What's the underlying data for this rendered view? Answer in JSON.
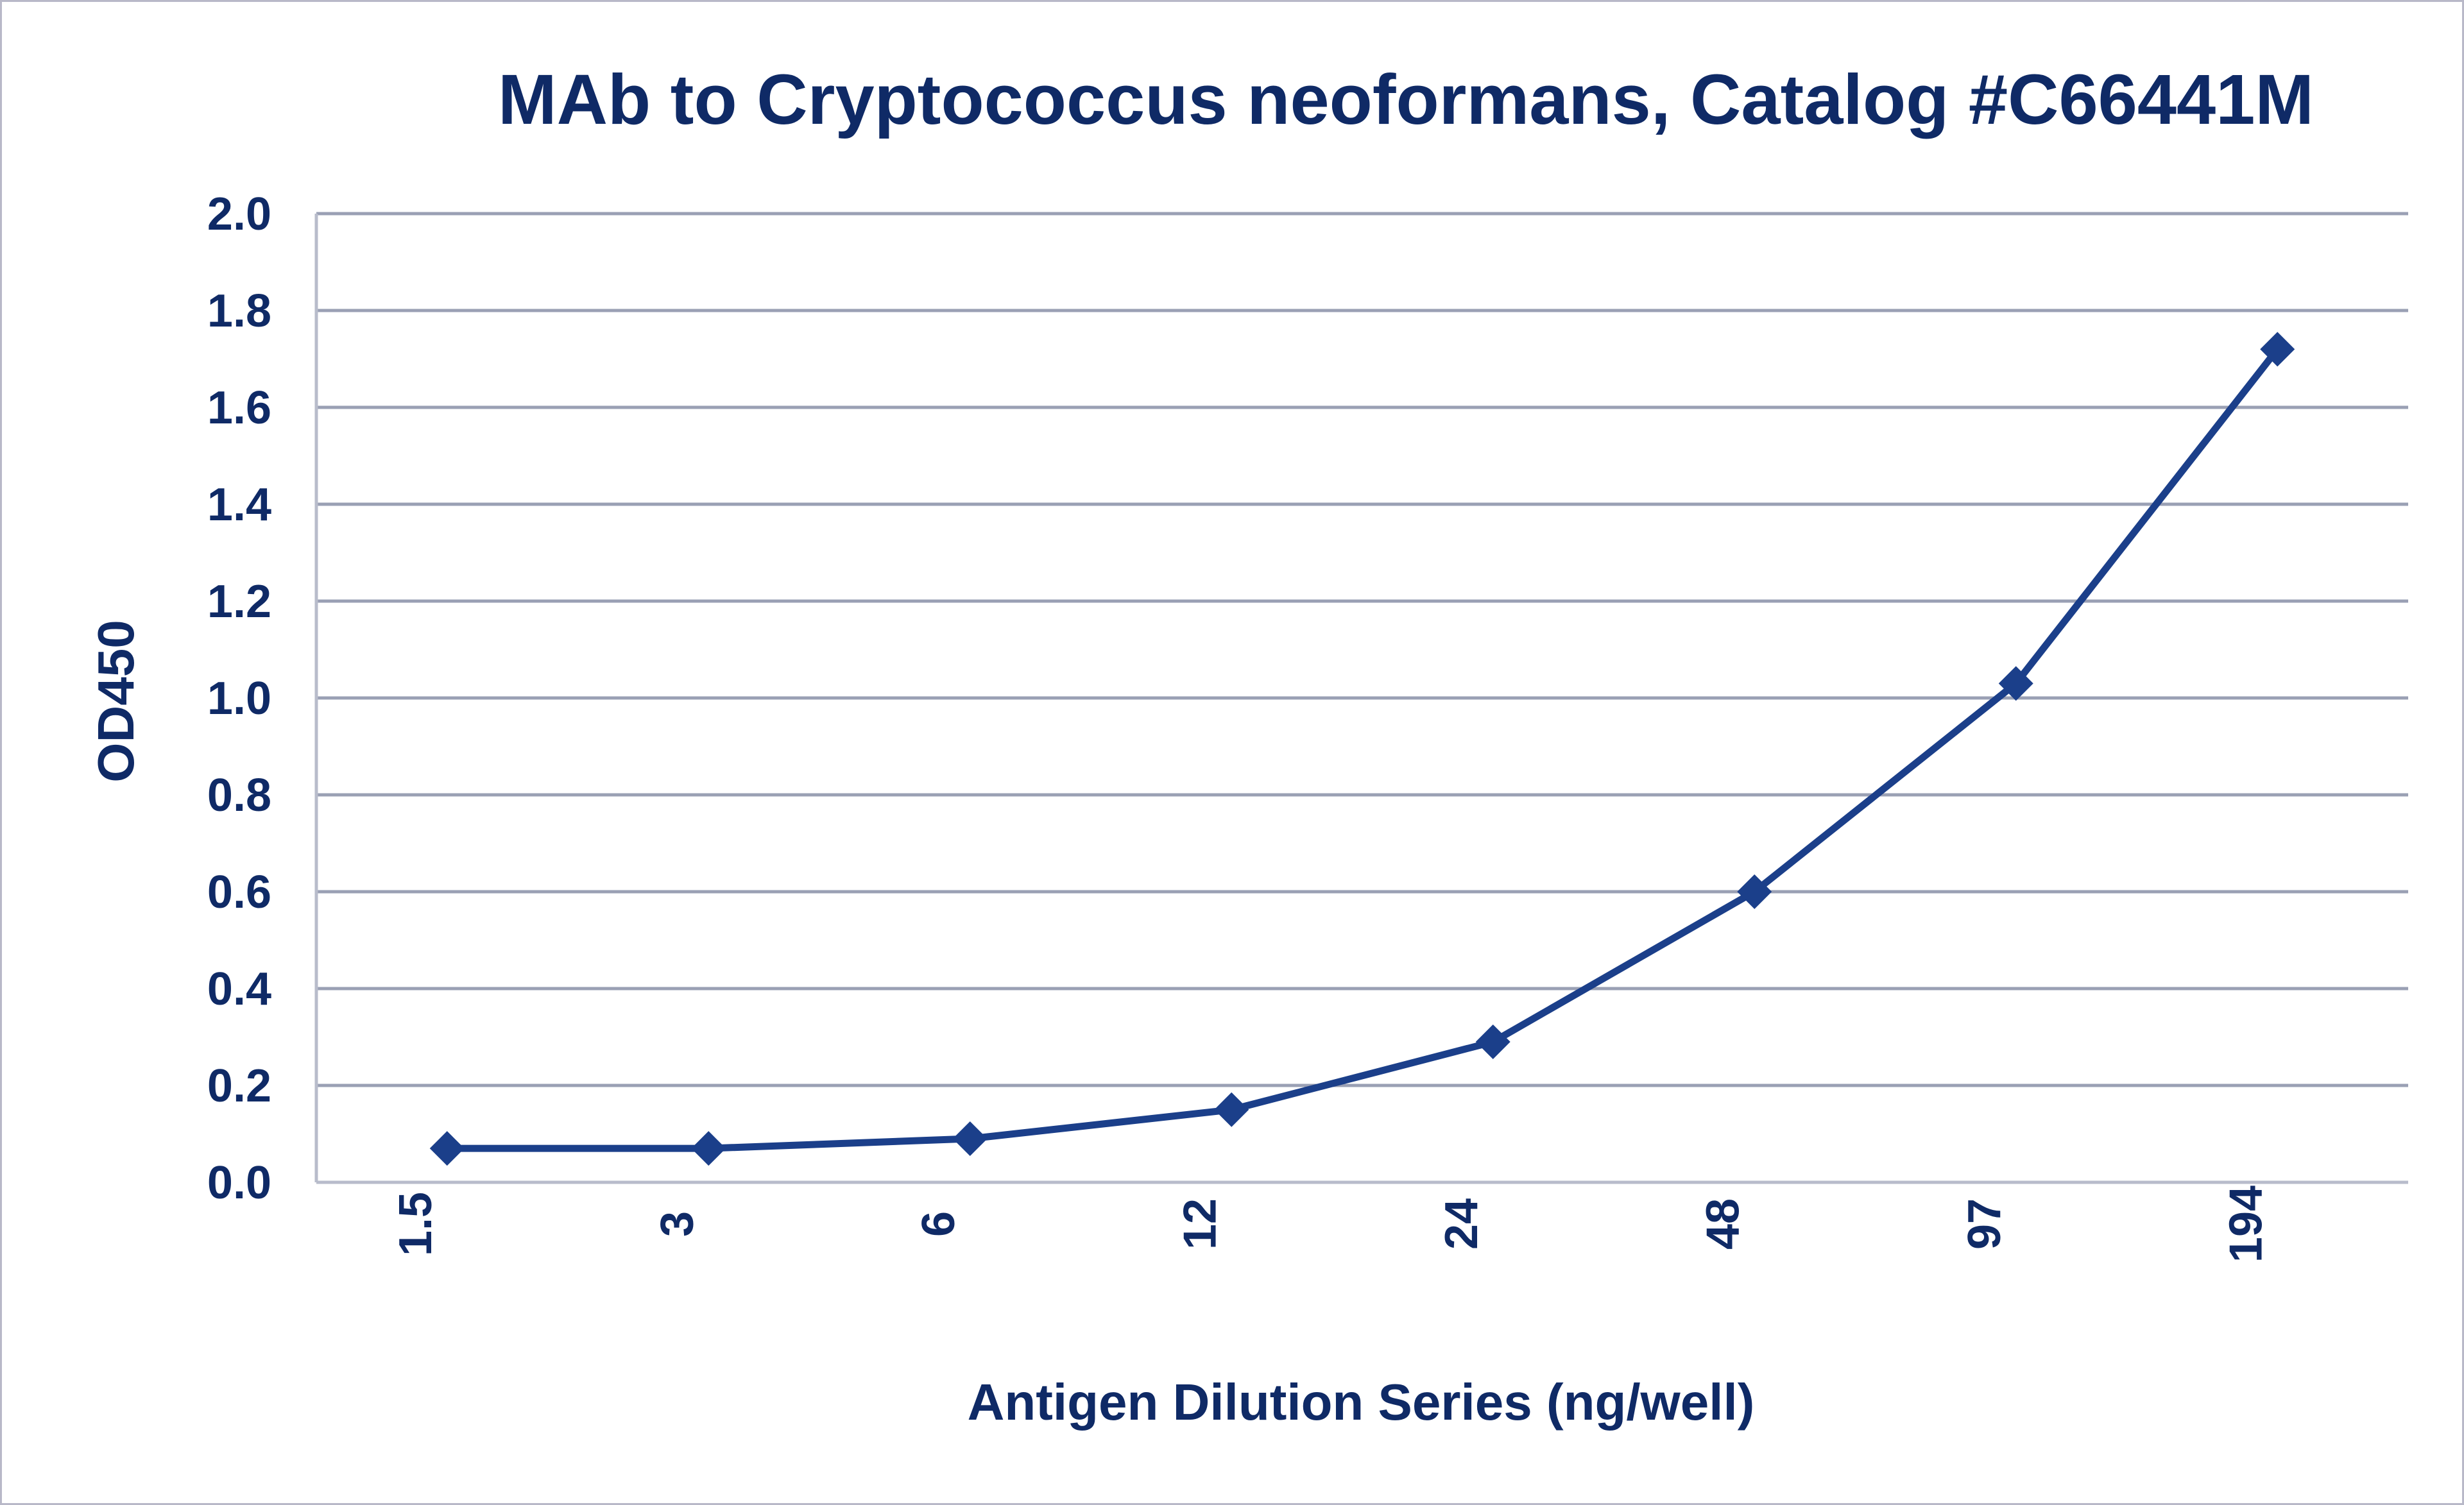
{
  "chart_data": {
    "type": "line",
    "title": "MAb to Cryptococcus neoformans, Catalog #C66441M",
    "xlabel": "Antigen Dilution Series (ng/well)",
    "ylabel": "OD450",
    "categories": [
      "1.5",
      "3",
      "6",
      "12",
      "24",
      "48",
      "97",
      "194"
    ],
    "series": [
      {
        "values": [
          0.07,
          0.07,
          0.09,
          0.15,
          0.29,
          0.6,
          1.03,
          1.72
        ]
      }
    ],
    "ylim": [
      0,
      2.0
    ],
    "yticks": [
      "0.0",
      "0.2",
      "0.4",
      "0.6",
      "0.8",
      "1.0",
      "1.2",
      "1.4",
      "1.6",
      "1.8",
      "2.0"
    ],
    "grid": true,
    "legend": "none",
    "colors": {
      "series": "#1b3f8a",
      "text": "#0f2a66",
      "grid": "#9aa0b4"
    },
    "marker": "diamond"
  }
}
